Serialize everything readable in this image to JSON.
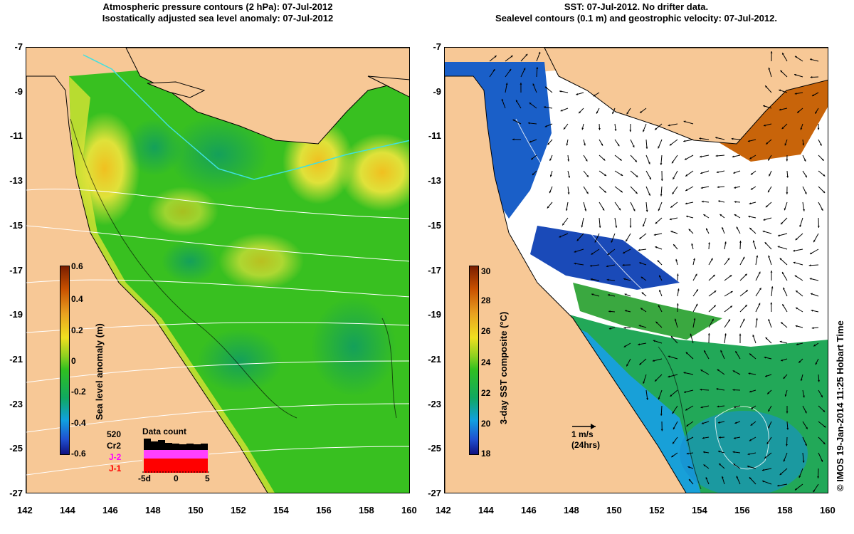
{
  "left_panel": {
    "title_line1": "Atmospheric pressure contours (2 hPa): 07-Jul-2012",
    "title_line2": "Isostatically adjusted sea level anomaly: 07-Jul-2012",
    "colorbar": {
      "label": "Sea level anomaly (m)",
      "ticks": [
        "0.6",
        "0.4",
        "0.2",
        "0",
        "-0.2",
        "-0.4",
        "-0.6"
      ]
    },
    "data_count": {
      "title": "Data count",
      "satellites": [
        "520",
        "Cr2",
        "J-2",
        "J-1"
      ],
      "sat_colors": [
        "#000000",
        "#000000",
        "#ff00ff",
        "#ff0000"
      ],
      "x_ticks": [
        "-5d",
        "0",
        "5"
      ]
    }
  },
  "right_panel": {
    "title_line1": "SST: 07-Jul-2012. No drifter data.",
    "title_line2": "Sealevel contours (0.1 m) and geostrophic velocity: 07-Jul-2012.",
    "colorbar": {
      "label": "3-day SST composite (°C)",
      "ticks": [
        "30",
        "28",
        "26",
        "24",
        "22",
        "20",
        "18"
      ]
    },
    "velocity_key": {
      "line1": "1 m/s",
      "line2": "(24hrs)"
    }
  },
  "axes": {
    "x_ticks": [
      "142",
      "144",
      "146",
      "148",
      "150",
      "152",
      "154",
      "156",
      "158",
      "160"
    ],
    "y_ticks": [
      "-7",
      "-9",
      "-11",
      "-13",
      "-15",
      "-17",
      "-19",
      "-21",
      "-23",
      "-25",
      "-27"
    ]
  },
  "credit": "© IMOS 19-Jan-2014 11:25 Hobart Time",
  "colors": {
    "land": "#f7c896",
    "sla_main": "#33c21a",
    "sla_high": "#e8e020",
    "sla_low": "#18a85a",
    "sst_cool": "#1a5fc8",
    "sst_warm": "#c8640a"
  }
}
